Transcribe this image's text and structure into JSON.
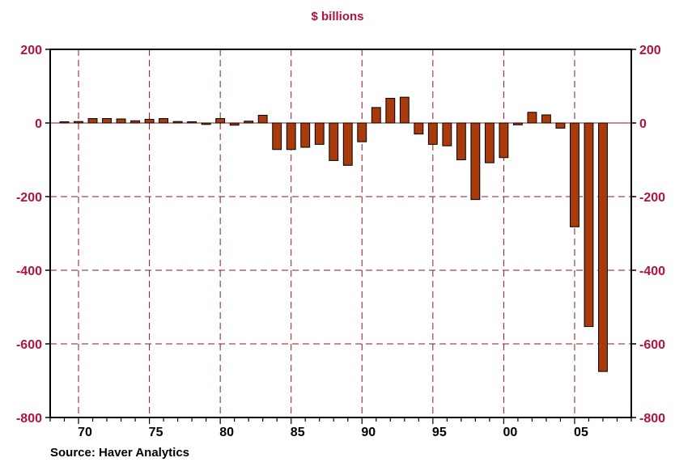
{
  "chart_data": {
    "type": "bar",
    "title": "$ billions",
    "xlabel": "",
    "ylabel": "",
    "x": [
      1969,
      1970,
      1971,
      1972,
      1973,
      1974,
      1975,
      1976,
      1977,
      1978,
      1979,
      1980,
      1981,
      1982,
      1983,
      1984,
      1985,
      1986,
      1987,
      1988,
      1989,
      1990,
      1991,
      1992,
      1993,
      1994,
      1995,
      1996,
      1997,
      1998,
      1999,
      2000,
      2001,
      2002,
      2003,
      2004,
      2005,
      2006,
      2007
    ],
    "values": [
      3,
      4,
      12,
      12,
      11,
      6,
      10,
      12,
      4,
      0,
      -4,
      12,
      -6,
      5,
      21,
      -72,
      -72,
      -66,
      -58,
      -102,
      -115,
      -51,
      42,
      67,
      70,
      -30,
      -58,
      -62,
      -100,
      -208,
      -108,
      -94,
      -5,
      29,
      22,
      -14,
      -282,
      -553,
      -675
    ],
    "xlim": [
      1968,
      2009
    ],
    "ylim": [
      -800,
      200
    ],
    "yticks": [
      200,
      0,
      -200,
      -400,
      -600,
      -800
    ],
    "ytick_labels": [
      "200",
      "0",
      "-200",
      "-400",
      "-600",
      "-800"
    ],
    "xticks": [
      1970,
      1975,
      1980,
      1985,
      1990,
      1995,
      2000,
      2005
    ],
    "xtick_labels": [
      "70",
      "75",
      "80",
      "85",
      "90",
      "95",
      "00",
      "05"
    ],
    "grid": true,
    "source": "Source: Haver Analytics",
    "colors": {
      "bar": "#a83a0c",
      "title": "#b0133b",
      "ytick": "#b0133b",
      "grid": "#8b1a1a"
    }
  }
}
